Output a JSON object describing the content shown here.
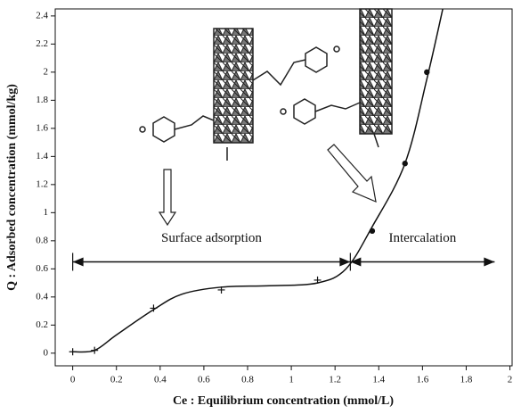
{
  "chart_data": {
    "type": "line",
    "xlabel": "Ce : Equilibrium concentration (mmol/L)",
    "ylabel": "Q : Adsorbed concentration (mmol/kg)",
    "xlim": [
      -0.08,
      2.01
    ],
    "ylim": [
      -0.09,
      2.45
    ],
    "xticks": [
      0,
      0.2,
      0.4,
      0.6,
      0.8,
      1,
      1.2,
      1.4,
      1.6,
      1.8,
      2
    ],
    "yticks": [
      0,
      0.2,
      0.4,
      0.6,
      0.8,
      1,
      1.2,
      1.4,
      1.6,
      1.8,
      2,
      2.2,
      2.4
    ],
    "color": "#111111",
    "curve": {
      "x": [
        0,
        0.1,
        0.2,
        0.37,
        0.5,
        0.68,
        0.9,
        1.12,
        1.25,
        1.37,
        1.52,
        1.62,
        1.7
      ],
      "values": [
        0.01,
        0.02,
        0.13,
        0.31,
        0.42,
        0.47,
        0.48,
        0.5,
        0.6,
        0.9,
        1.35,
        1.95,
        2.5
      ]
    },
    "series": [
      {
        "marker": "plus",
        "x": [
          0,
          0.1,
          0.37,
          0.68,
          1.12
        ],
        "values": [
          0.01,
          0.02,
          0.32,
          0.45,
          0.52
        ]
      },
      {
        "marker": "dot",
        "x": [
          1.37,
          1.52,
          1.62
        ],
        "values": [
          0.87,
          1.35,
          2.0
        ]
      }
    ],
    "regions": [
      {
        "label": "Surface adsorption",
        "x": [
          0,
          1.27
        ],
        "y": 0.65
      },
      {
        "label": "Intercalation",
        "x": [
          1.27,
          1.93
        ],
        "y": 0.65
      }
    ]
  }
}
